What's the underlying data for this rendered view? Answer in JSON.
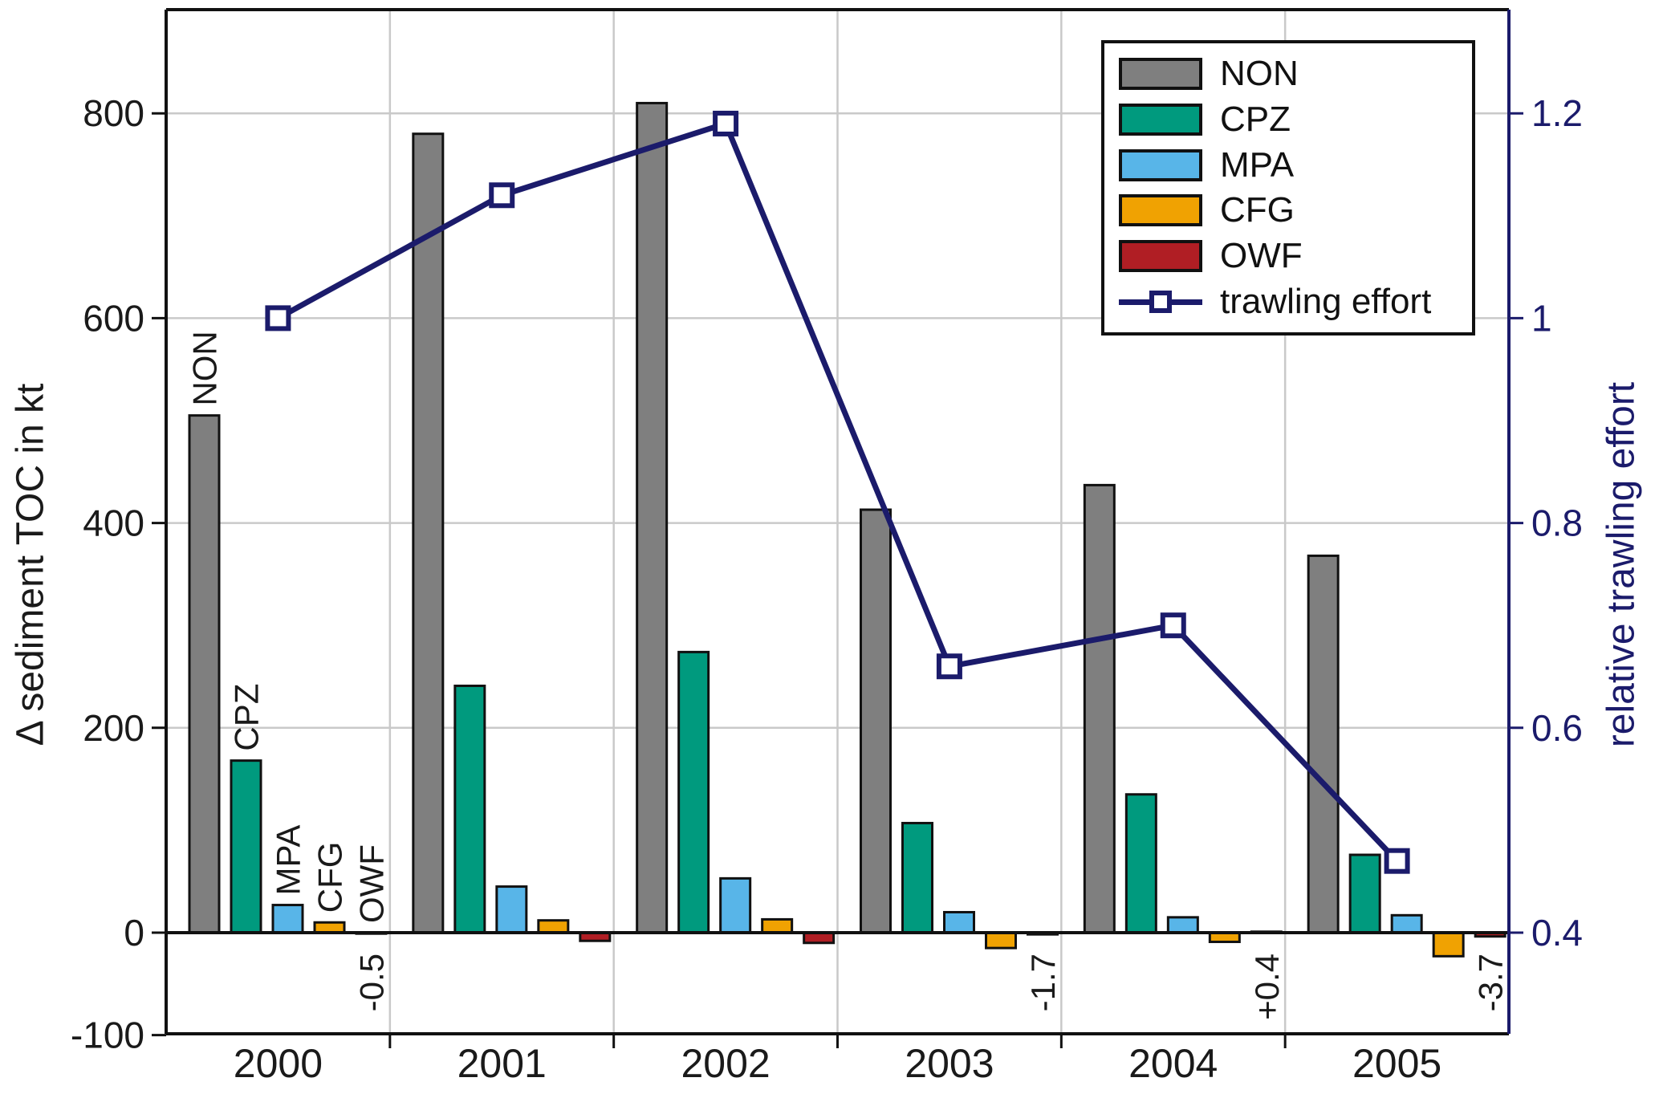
{
  "chart_data": {
    "type": "bar",
    "title": "",
    "categories": [
      "2000",
      "2001",
      "2002",
      "2003",
      "2004",
      "2005"
    ],
    "series": [
      {
        "name": "NON",
        "color": "#7f7f7f",
        "values": [
          505,
          780,
          810,
          413,
          437,
          368
        ]
      },
      {
        "name": "CPZ",
        "color": "#009a7e",
        "values": [
          168,
          241,
          274,
          107,
          135,
          76
        ]
      },
      {
        "name": "MPA",
        "color": "#58b5e8",
        "values": [
          27,
          45,
          53,
          20,
          15,
          17
        ]
      },
      {
        "name": "CFG",
        "color": "#f0a202",
        "values": [
          10,
          12,
          13,
          -15,
          -9,
          -23
        ]
      },
      {
        "name": "OWF",
        "color": "#b01e24",
        "values": [
          -0.5,
          -8,
          -10,
          -1.7,
          0.4,
          -3.7
        ]
      }
    ],
    "line_series": {
      "name": "trawling effort",
      "color": "#1b1b6b",
      "values": [
        1.0,
        1.12,
        1.19,
        0.66,
        0.7,
        0.47
      ]
    },
    "left_axis": {
      "label": "Δ sediment TOC in kt",
      "tick_labels": [
        "800",
        "600",
        "400",
        "200",
        "0",
        "-100"
      ],
      "tick_values": [
        800,
        600,
        400,
        200,
        0,
        -100
      ],
      "range": [
        -100,
        900
      ],
      "color": "#1a1a1a"
    },
    "right_axis": {
      "label": "relative trawling effort",
      "tick_labels": [
        "1.2",
        "1",
        "0.8",
        "0.6",
        "0.4"
      ],
      "tick_values": [
        1.2,
        1.0,
        0.8,
        0.6,
        0.4
      ],
      "range": [
        0.3,
        1.3
      ],
      "color": "#1b1b6b"
    },
    "grid": "on",
    "legend_position": "upper right",
    "legend_entries": [
      "NON",
      "CPZ",
      "MPA",
      "CFG",
      "OWF",
      "trawling effort"
    ],
    "annotations": {
      "series_labels_in_year": "2000",
      "series_labels": [
        "NON",
        "CPZ",
        "MPA",
        "CFG",
        "OWF"
      ],
      "value_labels": [
        {
          "category": "2000",
          "series": "OWF",
          "text": "-0.5"
        },
        {
          "category": "2003",
          "series": "OWF",
          "text": "-1.7"
        },
        {
          "category": "2004",
          "series": "OWF",
          "text": "+0.4"
        },
        {
          "category": "2005",
          "series": "OWF",
          "text": "-3.7"
        }
      ]
    },
    "styles": {
      "gridline_color": "#c9c9c9",
      "spine_color": "#111111",
      "bar_border_color": "#111111",
      "background": "#ffffff"
    }
  }
}
